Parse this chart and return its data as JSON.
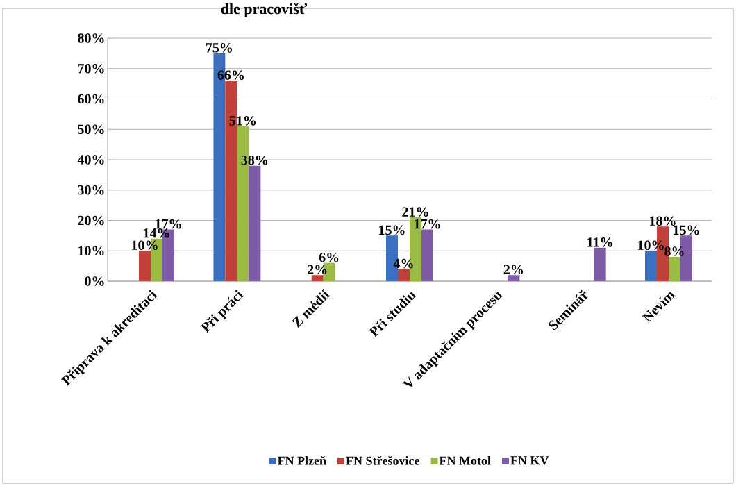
{
  "chart_data": {
    "type": "bar",
    "title": "dle pracovišť",
    "categories": [
      "Příprava k akreditaci",
      "Při práci",
      "Z médií",
      "Při studiu",
      "V adaptačním procesu",
      "Seminář",
      "Nevím"
    ],
    "series": [
      {
        "name": "FN Plzeň",
        "color": "#3c6fc0",
        "values": [
          null,
          75,
          null,
          15,
          null,
          null,
          10
        ],
        "value_labels": [
          null,
          "75%",
          null,
          "15%",
          null,
          null,
          "10%"
        ]
      },
      {
        "name": "FN Střešovice",
        "color": "#c0403a",
        "values": [
          10,
          66,
          2,
          4,
          null,
          null,
          18
        ],
        "value_labels": [
          "10%",
          "66%",
          "2%",
          "4%",
          null,
          null,
          "18%"
        ]
      },
      {
        "name": "FN Motol",
        "color": "#9bbb45",
        "values": [
          14,
          51,
          6,
          21,
          null,
          null,
          8
        ],
        "value_labels": [
          "14%",
          "51%",
          "6%",
          "21%",
          null,
          null,
          "8%"
        ]
      },
      {
        "name": "FN KV",
        "color": "#7d5ba6",
        "values": [
          17,
          38,
          null,
          17,
          2,
          11,
          15
        ],
        "value_labels": [
          "17%",
          "38%",
          null,
          "17%",
          "2%",
          "11%",
          "15%"
        ]
      }
    ],
    "ylim": [
      0,
      80
    ],
    "yticks": [
      {
        "value": 0,
        "label": "0%"
      },
      {
        "value": 10,
        "label": "10%"
      },
      {
        "value": 20,
        "label": "20%"
      },
      {
        "value": 30,
        "label": "30%"
      },
      {
        "value": 40,
        "label": "40%"
      },
      {
        "value": 50,
        "label": "50%"
      },
      {
        "value": 60,
        "label": "60%"
      },
      {
        "value": 70,
        "label": "70%"
      },
      {
        "value": 80,
        "label": "80%"
      }
    ],
    "grid": "y",
    "legend": "bottom"
  }
}
